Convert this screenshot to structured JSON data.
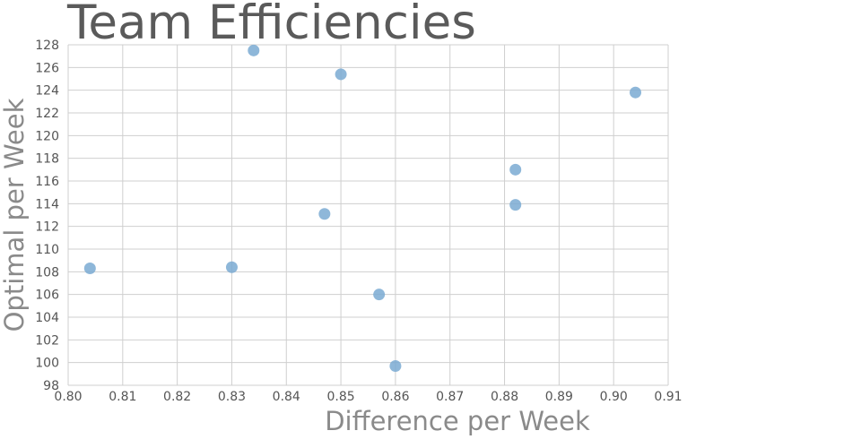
{
  "chart_data": {
    "type": "scatter",
    "title": "Team Efficiencies",
    "xlabel": "Difference per Week",
    "ylabel": "Optimal per Week",
    "xlim": [
      0.8,
      0.91
    ],
    "ylim": [
      98,
      128
    ],
    "x_ticks": [
      "0.80",
      "0.81",
      "0.82",
      "0.83",
      "0.84",
      "0.85",
      "0.86",
      "0.87",
      "0.88",
      "0.89",
      "0.90",
      "0.91"
    ],
    "y_ticks": [
      "98",
      "100",
      "102",
      "104",
      "106",
      "108",
      "110",
      "112",
      "114",
      "116",
      "118",
      "120",
      "122",
      "124",
      "126",
      "128"
    ],
    "grid": true,
    "colors": {
      "marker": "#7aaad2",
      "grid": "#cfcfcf",
      "title": "#5a5a5a",
      "axis_title": "#8a8a8a"
    },
    "points": [
      {
        "x": 0.804,
        "y": 108.3
      },
      {
        "x": 0.83,
        "y": 108.4
      },
      {
        "x": 0.834,
        "y": 127.5
      },
      {
        "x": 0.847,
        "y": 113.1
      },
      {
        "x": 0.85,
        "y": 125.4
      },
      {
        "x": 0.857,
        "y": 106.0
      },
      {
        "x": 0.86,
        "y": 99.7
      },
      {
        "x": 0.882,
        "y": 117.0
      },
      {
        "x": 0.882,
        "y": 113.9
      },
      {
        "x": 0.904,
        "y": 123.8
      }
    ]
  }
}
